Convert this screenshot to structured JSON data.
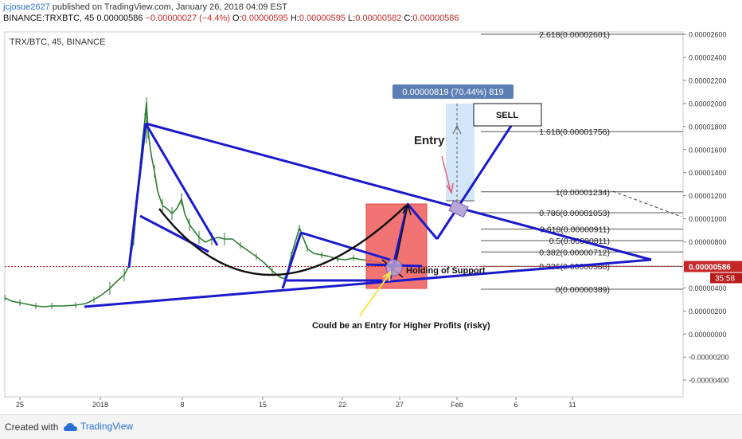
{
  "header": {
    "user": "jcjosue2627",
    "published_text": "published on TradingView.com, January 26, 2018 04:09 EST",
    "symbol": "BINANCE:TRXBTC, 45",
    "last": "0.00000586",
    "change": "−0.00000027 (−4.4%)",
    "o_label": "O:",
    "o_value": "0.00000595",
    "h_label": "H:",
    "h_value": "0.00000595",
    "l_label": "L:",
    "l_value": "0.00000582",
    "c_label": "C:",
    "c_value": "0.00000586"
  },
  "footer": {
    "created_with": "Created with",
    "brand": "TradingView"
  },
  "colors": {
    "candle": "#2e7d32",
    "trend": "#1a1acc",
    "fib": "#222222",
    "accent": "#c62828",
    "label_blue": "#5b7fb5"
  },
  "chart_data": {
    "type": "candlestick",
    "title": "TRX/BTC, 45, BINANCE",
    "x_ticks": [
      "25",
      "2018",
      "8",
      "15",
      "22",
      "27",
      "Feb",
      "6",
      "11"
    ],
    "y_ticks": [
      "0.00002600",
      "0.00002400",
      "0.00002200",
      "0.00002000",
      "0.00001800",
      "0.00001600",
      "0.00001400",
      "0.00001200",
      "0.00001000",
      "0.00000800",
      "0.00000600",
      "0.00000400",
      "0.00000200",
      "0.00000000",
      "-0.00000200",
      "-0.00000400"
    ],
    "y_values": [
      2.6e-05,
      2.4e-05,
      2.2e-05,
      2e-05,
      1.8e-05,
      1.6e-05,
      1.4e-05,
      1.2e-05,
      1e-05,
      8e-06,
      6e-06,
      4e-06,
      2e-06,
      0,
      -2e-06,
      -4e-06
    ],
    "ylim": [
      -4.8e-06,
      2.72e-05
    ],
    "current_price": "0.00000586",
    "current_value": 5.86e-06,
    "timer": "35:58",
    "fib_levels": [
      {
        "label": "2.618(0.00002601)",
        "value": 2.601e-05
      },
      {
        "label": "1.618(0.00001756)",
        "value": 1.756e-05
      },
      {
        "label": "1(0.00001234)",
        "value": 1.234e-05
      },
      {
        "label": "0.786(0.00001053)",
        "value": 1.053e-05
      },
      {
        "label": "0.618(0.00000911)",
        "value": 9.11e-06
      },
      {
        "label": "0.5(0.00000811)",
        "value": 8.11e-06
      },
      {
        "label": "0.382(0.00000712)",
        "value": 7.12e-06
      },
      {
        "label": "0.236(0.00000588)",
        "value": 5.88e-06
      },
      {
        "label": "0(0.00000389)",
        "value": 3.89e-06
      }
    ],
    "annotations": {
      "measure": "0.00000819 (70.44%) 819",
      "sell": "SELL",
      "entry": "Entry",
      "support": "Holding of Support",
      "higher": "Could be an Entry for Higher Profits (risky)"
    }
  }
}
